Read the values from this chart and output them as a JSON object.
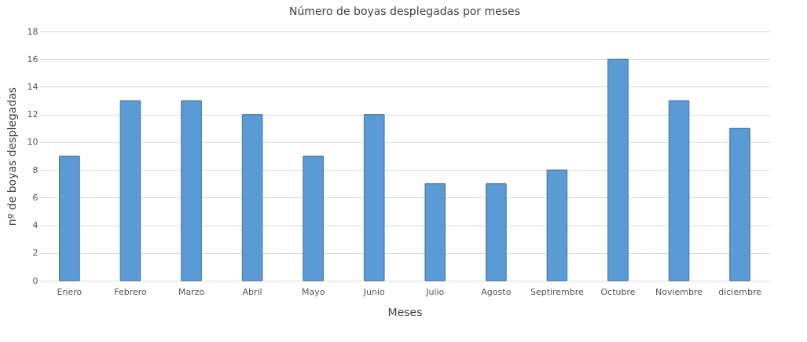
{
  "chart_data": {
    "type": "bar",
    "title": "Número de boyas desplegadas por meses",
    "xlabel": "Meses",
    "ylabel": "nº de boyas desplegadas",
    "categories": [
      "Enero",
      "Febrero",
      "Marzo",
      "Abril",
      "Mayo",
      "Junio",
      "Julio",
      "Agosto",
      "Septirembre",
      "Octubre",
      "Noviembre",
      "diciembre"
    ],
    "values": [
      9,
      13,
      13,
      12,
      9,
      12,
      7,
      7,
      8,
      16,
      13,
      11
    ],
    "color": "#5b9bd5",
    "ylim": [
      0,
      18
    ],
    "yticks": [
      0,
      2,
      4,
      6,
      8,
      10,
      12,
      14,
      16,
      18
    ],
    "grid": "y"
  }
}
